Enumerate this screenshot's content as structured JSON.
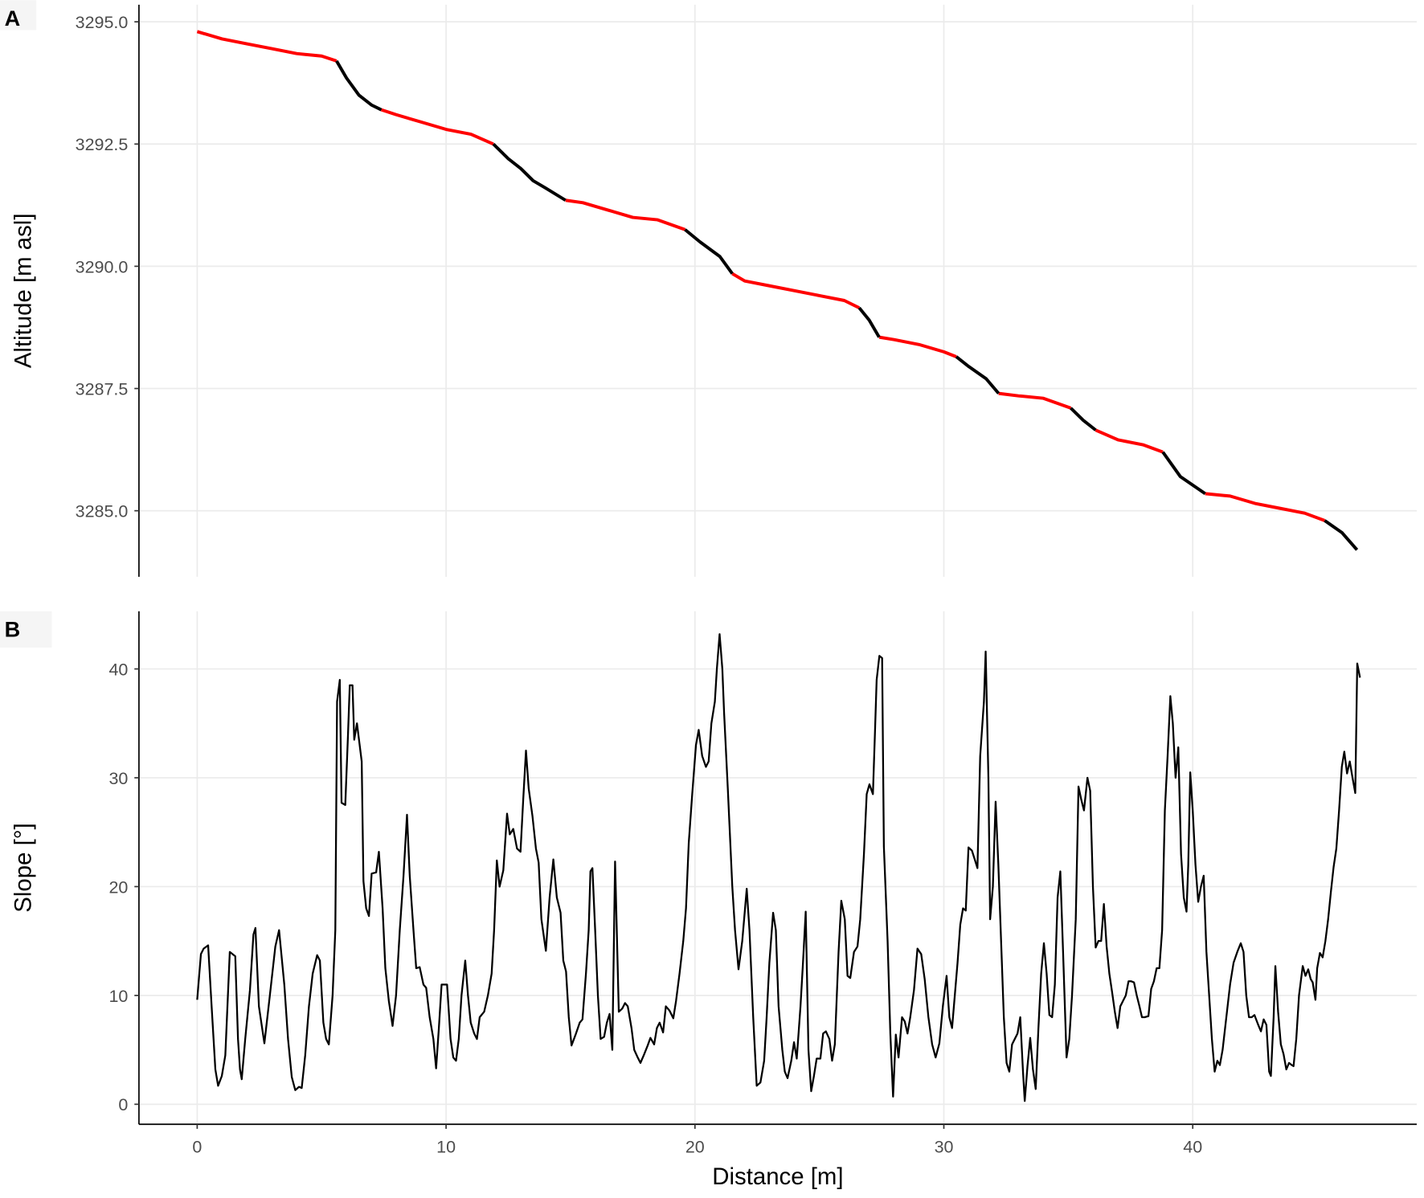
{
  "chart_data": [
    {
      "type": "line",
      "panel_label": "A",
      "ylabel": "Altitude [m asl]",
      "grid": true,
      "x_axis": false,
      "xlim": [
        -2.34,
        49.0
      ],
      "xticks": [
        0,
        10,
        20,
        30,
        40
      ],
      "ylim": [
        3283.65,
        3295.35
      ],
      "yticks": [
        {
          "value": 3285,
          "label": "3285.0"
        },
        {
          "value": 3287.5,
          "label": "3287.5"
        },
        {
          "value": 3290,
          "label": "3290.0"
        },
        {
          "value": 3292.5,
          "label": "3292.5"
        },
        {
          "value": 3295,
          "label": "3295.0"
        }
      ],
      "x": [
        0,
        1,
        2,
        3,
        4,
        5,
        5.6,
        6,
        6.5,
        7,
        7.4,
        8,
        9,
        10,
        11,
        11.9,
        12.5,
        13,
        13.5,
        14,
        14.8,
        15.5,
        16.5,
        17.5,
        18.5,
        19.6,
        20.2,
        21,
        21.5,
        22,
        23,
        24,
        25,
        26,
        26.6,
        27,
        27.4,
        28,
        29,
        30,
        30.5,
        31,
        31.7,
        32.2,
        33,
        34,
        35.1,
        35.6,
        36.1,
        37,
        38,
        38.8,
        39.5,
        40.5,
        41.5,
        42.5,
        43.5,
        44.5,
        45.3,
        46,
        46.6
      ],
      "series": [
        {
          "color": "#ff0000",
          "values": [
            3294.8,
            3294.65,
            3294.55,
            3294.45,
            3294.35,
            3294.3,
            3294.2,
            null,
            null,
            null,
            3293.2,
            3293.1,
            3292.95,
            3292.8,
            3292.7,
            3292.5,
            null,
            null,
            null,
            null,
            3291.35,
            3291.3,
            3291.15,
            3291.0,
            3290.95,
            3290.75,
            null,
            null,
            3289.85,
            3289.7,
            3289.6,
            3289.5,
            3289.4,
            3289.3,
            3289.15,
            null,
            3288.55,
            3288.5,
            3288.4,
            3288.25,
            3288.15,
            null,
            null,
            3287.4,
            3287.35,
            3287.3,
            3287.1,
            null,
            3286.65,
            3286.45,
            3286.35,
            3286.2,
            null,
            3285.35,
            3285.3,
            3285.15,
            3285.05,
            3284.95,
            3284.8,
            null,
            null
          ]
        },
        {
          "color": "#000000",
          "values": [
            null,
            null,
            null,
            null,
            null,
            null,
            3294.2,
            3293.85,
            3293.5,
            3293.3,
            3293.2,
            null,
            null,
            null,
            null,
            3292.5,
            3292.2,
            3292.0,
            3291.75,
            3291.6,
            3291.35,
            null,
            null,
            null,
            null,
            3290.75,
            3290.5,
            3290.2,
            3289.85,
            null,
            null,
            null,
            null,
            null,
            3289.15,
            3288.9,
            3288.55,
            null,
            null,
            null,
            3288.15,
            3287.95,
            3287.7,
            3287.4,
            null,
            null,
            3287.1,
            3286.85,
            3286.65,
            null,
            null,
            3286.2,
            3285.7,
            3285.35,
            null,
            null,
            null,
            null,
            3284.8,
            3284.55,
            3284.2
          ]
        }
      ]
    },
    {
      "type": "line",
      "panel_label": "B",
      "ylabel": "Slope [°]",
      "xlabel": "Distance [m]",
      "grid": true,
      "x_axis": true,
      "xlim": [
        -2.34,
        49.0
      ],
      "xticks": [
        0,
        10,
        20,
        30,
        40
      ],
      "ylim": [
        -1.84,
        45.3
      ],
      "yticks": [
        0,
        10,
        20,
        30,
        40
      ],
      "x": [
        0,
        0.15,
        0.26,
        0.44,
        0.58,
        0.73,
        0.84,
        0.99,
        1.13,
        1.31,
        1.53,
        1.64,
        1.72,
        1.79,
        1.93,
        2.12,
        2.26,
        2.34,
        2.48,
        2.7,
        2.92,
        3.14,
        3.29,
        3.5,
        3.65,
        3.8,
        3.94,
        4.09,
        4.2,
        4.34,
        4.49,
        4.64,
        4.82,
        4.93,
        5.07,
        5.18,
        5.29,
        5.44,
        5.55,
        5.62,
        5.73,
        5.8,
        5.95,
        6.06,
        6.13,
        6.24,
        6.31,
        6.42,
        6.61,
        6.68,
        6.79,
        6.9,
        7.01,
        7.19,
        7.3,
        7.45,
        7.56,
        7.7,
        7.85,
        7.99,
        8.14,
        8.29,
        8.43,
        8.54,
        8.69,
        8.8,
        8.94,
        9.09,
        9.2,
        9.34,
        9.49,
        9.6,
        9.71,
        9.82,
        10.04,
        10.18,
        10.29,
        10.4,
        10.51,
        10.62,
        10.77,
        10.88,
        10.99,
        11.13,
        11.24,
        11.35,
        11.53,
        11.68,
        11.83,
        11.93,
        12.04,
        12.15,
        12.3,
        12.45,
        12.56,
        12.7,
        12.85,
        12.99,
        13.1,
        13.21,
        13.32,
        13.47,
        13.61,
        13.72,
        13.83,
        14.01,
        14.16,
        14.31,
        14.45,
        14.6,
        14.71,
        14.82,
        14.93,
        15.04,
        15.22,
        15.37,
        15.48,
        15.62,
        15.73,
        15.8,
        15.88,
        15.99,
        16.1,
        16.21,
        16.35,
        16.46,
        16.57,
        16.68,
        16.79,
        16.94,
        17.08,
        17.19,
        17.3,
        17.45,
        17.56,
        17.7,
        17.81,
        17.96,
        18.1,
        18.21,
        18.36,
        18.47,
        18.58,
        18.72,
        18.83,
        18.98,
        19.13,
        19.24,
        19.38,
        19.53,
        19.64,
        19.75,
        19.89,
        20.04,
        20.15,
        20.29,
        20.44,
        20.55,
        20.66,
        20.8,
        20.88,
        20.99,
        21.1,
        21.17,
        21.32,
        21.42,
        21.5,
        21.61,
        21.75,
        21.9,
        22.08,
        22.19,
        22.34,
        22.48,
        22.63,
        22.78,
        22.88,
        22.99,
        23.14,
        23.25,
        23.36,
        23.51,
        23.61,
        23.72,
        23.87,
        23.98,
        24.09,
        24.24,
        24.34,
        24.45,
        24.56,
        24.67,
        24.78,
        24.89,
        25.04,
        25.15,
        25.26,
        25.4,
        25.51,
        25.62,
        25.77,
        25.88,
        26.02,
        26.13,
        26.24,
        26.39,
        26.53,
        26.64,
        26.79,
        26.9,
        27.01,
        27.15,
        27.23,
        27.3,
        27.41,
        27.52,
        27.59,
        27.74,
        27.85,
        27.96,
        28.07,
        28.18,
        28.32,
        28.43,
        28.54,
        28.65,
        28.8,
        28.94,
        29.09,
        29.23,
        29.38,
        29.53,
        29.67,
        29.82,
        29.96,
        30.11,
        30.22,
        30.33,
        30.44,
        30.55,
        30.66,
        30.77,
        30.88,
        30.99,
        31.13,
        31.24,
        31.35,
        31.46,
        31.61,
        31.68,
        31.79,
        31.86,
        31.97,
        32.08,
        32.19,
        32.3,
        32.41,
        32.52,
        32.63,
        32.74,
        32.85,
        32.96,
        33.07,
        33.18,
        33.25,
        33.36,
        33.47,
        33.58,
        33.69,
        33.8,
        33.91,
        34.02,
        34.13,
        34.24,
        34.35,
        34.46,
        34.57,
        34.68,
        34.79,
        34.93,
        35.04,
        35.15,
        35.3,
        35.41,
        35.52,
        35.63,
        35.77,
        35.88,
        35.99,
        36.1,
        36.21,
        36.32,
        36.43,
        36.54,
        36.65,
        36.76,
        36.87,
        36.98,
        37.09,
        37.2,
        37.31,
        37.42,
        37.53,
        37.64,
        37.75,
        37.86,
        37.96,
        38.07,
        38.22,
        38.33,
        38.44,
        38.55,
        38.66,
        38.77,
        38.88,
        38.99,
        39.1,
        39.2,
        39.31,
        39.42,
        39.53,
        39.64,
        39.75,
        39.82,
        39.9,
        40.0,
        40.11,
        40.22,
        40.33,
        40.44,
        40.55,
        40.66,
        40.77,
        40.88,
        40.99,
        41.09,
        41.2,
        41.35,
        41.5,
        41.64,
        41.79,
        41.93,
        42.04,
        42.15,
        42.26,
        42.37,
        42.48,
        42.63,
        42.74,
        42.85,
        42.96,
        43.07,
        43.14,
        43.25,
        43.32,
        43.43,
        43.54,
        43.65,
        43.76,
        43.87,
        43.98,
        44.05,
        44.16,
        44.27,
        44.42,
        44.53,
        44.64,
        44.74,
        44.82,
        44.93,
        45.0,
        45.11,
        45.22,
        45.33,
        45.44,
        45.55,
        45.66,
        45.77,
        45.88,
        45.99,
        46.09,
        46.2,
        46.31,
        46.42,
        46.53,
        46.61,
        46.72
      ],
      "series": [
        {
          "color": "#000000",
          "values": [
            9.6,
            13.8,
            14.3,
            14.6,
            9,
            3.2,
            1.7,
            2.6,
            4.5,
            14,
            13.6,
            6,
            3.2,
            2.3,
            6,
            10.5,
            15.6,
            16.2,
            9,
            5.6,
            10,
            14.5,
            16,
            11,
            6,
            2.5,
            1.3,
            1.6,
            1.5,
            4.5,
            9,
            12,
            13.7,
            13.2,
            7.5,
            6,
            5.5,
            10,
            16,
            37,
            39,
            27.7,
            27.5,
            34,
            38.5,
            38.5,
            33.5,
            35,
            31.5,
            20.5,
            18,
            17.3,
            21.2,
            21.3,
            23.2,
            18,
            12.5,
            9.5,
            7.2,
            10,
            16,
            21,
            26.6,
            21,
            16,
            12.5,
            12.6,
            11,
            10.7,
            8,
            6,
            3.3,
            7,
            11,
            11,
            6,
            4.3,
            4,
            6,
            10,
            13.2,
            10,
            7.5,
            6.5,
            6,
            8,
            8.5,
            10,
            12,
            16,
            22.4,
            20,
            21.5,
            26.7,
            24.8,
            25.3,
            23.5,
            23.2,
            28,
            32.5,
            29,
            26.5,
            23.5,
            22.2,
            17,
            14.1,
            19,
            22.5,
            19,
            17.6,
            13.2,
            12.2,
            8,
            5.4,
            6.5,
            7.5,
            7.8,
            12,
            16,
            21.4,
            21.7,
            16,
            10,
            6,
            6.2,
            7.5,
            8.3,
            5,
            22.3,
            8.5,
            8.8,
            9.3,
            9,
            7,
            5,
            4.3,
            3.8,
            4.6,
            5.4,
            6.1,
            5.5,
            7,
            7.5,
            6.6,
            9,
            8.6,
            7.9,
            9.5,
            12,
            15,
            18,
            24,
            28.5,
            33,
            34.4,
            32,
            31,
            31.5,
            35,
            37,
            40,
            43.2,
            40,
            36,
            29,
            24,
            20,
            16,
            12.4,
            15,
            19.8,
            16,
            8,
            1.7,
            2,
            4,
            8,
            13,
            17.6,
            16,
            9,
            5,
            3,
            2.4,
            4,
            5.7,
            4.2,
            9,
            13,
            17.7,
            5,
            1.2,
            2.6,
            4.2,
            4.2,
            6.5,
            6.7,
            6,
            4,
            5.5,
            14,
            18.7,
            17,
            11.8,
            11.6,
            14,
            14.5,
            17,
            23,
            28.5,
            29.4,
            28.5,
            34,
            39,
            41.2,
            41,
            23.7,
            15,
            6.5,
            0.7,
            6.4,
            4.3,
            8,
            7.6,
            6.5,
            8,
            10.5,
            14.3,
            13.8,
            11.5,
            8,
            5.5,
            4.3,
            5.6,
            9,
            11.8,
            8,
            7,
            10,
            13,
            16.5,
            18,
            17.8,
            23.6,
            23.3,
            22.5,
            21.7,
            32,
            37,
            41.6,
            30,
            17,
            20,
            27.8,
            22,
            15,
            8,
            3.8,
            3,
            5.5,
            6,
            6.5,
            8,
            3,
            0.3,
            3.5,
            6.1,
            3.2,
            1.4,
            7,
            12,
            14.8,
            12,
            8.2,
            8,
            11,
            19,
            21.4,
            14,
            4.3,
            6,
            10,
            17,
            29.2,
            28,
            27,
            30,
            28.8,
            20,
            14.4,
            15,
            15,
            18.4,
            14.5,
            12,
            10.3,
            8.5,
            7,
            9,
            9.5,
            10,
            11.3,
            11.3,
            11.2,
            10,
            9,
            8,
            8,
            8.1,
            10.6,
            11.3,
            12.5,
            12.5,
            16,
            27,
            32,
            37.5,
            35,
            30,
            32.8,
            23,
            19,
            17.7,
            22,
            30.5,
            27,
            22,
            18.6,
            20,
            21,
            14,
            10,
            6,
            3,
            4,
            3.6,
            5,
            8,
            11,
            13,
            14,
            14.8,
            14,
            10,
            8,
            8,
            8.2,
            7.3,
            6.7,
            7.8,
            7.3,
            3,
            2.6,
            8,
            12.7,
            8.5,
            5.5,
            4.6,
            3.2,
            3.8,
            3.6,
            3.5,
            6,
            10,
            12.7,
            11.8,
            12.4,
            11.5,
            11.2,
            9.6,
            12.5,
            13.9,
            13.5,
            15,
            17,
            19.5,
            21.8,
            23.5,
            27,
            31,
            32.4,
            30.4,
            31.5,
            30,
            28.6,
            40.5,
            39.2
          ]
        }
      ]
    }
  ]
}
